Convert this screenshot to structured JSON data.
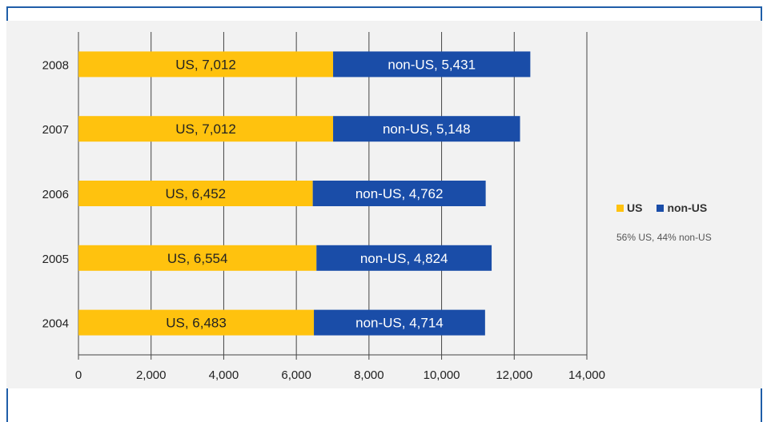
{
  "chart_data": {
    "type": "bar",
    "orientation": "horizontal",
    "stacked": true,
    "categories": [
      "2008",
      "2007",
      "2006",
      "2005",
      "2004"
    ],
    "series": [
      {
        "name": "US",
        "color": "#ffc20e",
        "values": [
          7012,
          7012,
          6452,
          6554,
          6483
        ],
        "labels": [
          "US, 7,012",
          "US, 7,012",
          "US, 6,452",
          "US, 6,554",
          "US, 6,483"
        ]
      },
      {
        "name": "non-US",
        "color": "#1a4da8",
        "values": [
          5431,
          5148,
          4762,
          4824,
          4714
        ],
        "labels": [
          "non-US, 5,431",
          "non-US, 5,148",
          "non-US, 4,762",
          "non-US, 4,824",
          "non-US, 4,714"
        ]
      }
    ],
    "xlim": [
      0,
      14000
    ],
    "xticks": [
      0,
      2000,
      4000,
      6000,
      8000,
      10000,
      12000,
      14000
    ],
    "xtick_labels": [
      "0",
      "2,000",
      "4,000",
      "6,000",
      "8,000",
      "10,000",
      "12,000",
      "14,000"
    ],
    "grid": true,
    "legend_position": "right",
    "legend_note": "56% US, 44% non-US"
  }
}
